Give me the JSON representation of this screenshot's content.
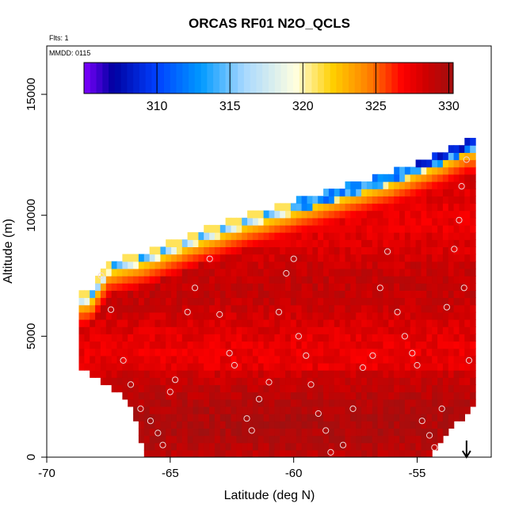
{
  "chart_data": {
    "type": "heatmap",
    "title": "ORCAS RF01 N2O_QCLS",
    "xlabel": "Latitude (deg N)",
    "ylabel": "Altitude (m)",
    "xlim": [
      -70,
      -52
    ],
    "ylim": [
      0,
      17000
    ],
    "xticks": [
      -70,
      -65,
      -60,
      -55
    ],
    "xtick_labels": [
      "-70",
      "-65",
      "-60",
      "-55"
    ],
    "yticks": [
      0,
      5000,
      10000,
      15000
    ],
    "ytick_labels": [
      "0",
      "5000",
      "10000",
      "15000"
    ],
    "flights_label": "Flts: 1",
    "date_label": "MMDD: 0115",
    "colorbar": {
      "range": [
        305,
        330.3
      ],
      "ticks": [
        310,
        315,
        320,
        325,
        330
      ],
      "tick_labels": [
        "310",
        "315",
        "320",
        "325",
        "330"
      ],
      "colors": [
        "#7f00ff",
        "#0000a0",
        "#0040ff",
        "#0099ff",
        "#a8d8ff",
        "#ffffe0",
        "#ffd000",
        "#ff8000",
        "#ff0000",
        "#cc0000",
        "#a01010"
      ],
      "stops": [
        305,
        307,
        310,
        313,
        316,
        319.5,
        322,
        324.5,
        326.8,
        328.5,
        330.3
      ]
    },
    "field": {
      "lat_bounds": [
        -68.7,
        -52.8
      ],
      "surface_alt": [
        {
          "lat": -68.7,
          "alt": 3800
        },
        {
          "lat": -68.0,
          "alt": 3200
        },
        {
          "lat": -67.2,
          "alt": 2800
        },
        {
          "lat": -66.5,
          "alt": 1800
        },
        {
          "lat": -66.0,
          "alt": 0
        },
        {
          "lat": -54.5,
          "alt": 0
        },
        {
          "lat": -53.6,
          "alt": 1200
        },
        {
          "lat": -52.8,
          "alt": 2000
        }
      ],
      "trop_top": [
        {
          "lat": -68.7,
          "alt": 6600
        },
        {
          "lat": -68.2,
          "alt": 6700
        },
        {
          "lat": -67.5,
          "alt": 7900
        },
        {
          "lat": -66.0,
          "alt": 8300
        },
        {
          "lat": -64.0,
          "alt": 9100
        },
        {
          "lat": -62.0,
          "alt": 9800
        },
        {
          "lat": -60.0,
          "alt": 10400
        },
        {
          "lat": -58.0,
          "alt": 11000
        },
        {
          "lat": -56.0,
          "alt": 11600
        },
        {
          "lat": -54.0,
          "alt": 12400
        },
        {
          "lat": -53.0,
          "alt": 12900
        }
      ],
      "background_value": 328.5
    },
    "sample_points": [
      {
        "lat": -66.9,
        "alt": 4000
      },
      {
        "lat": -67.4,
        "alt": 6100
      },
      {
        "lat": -67.8,
        "alt": 7500
      },
      {
        "lat": -66.6,
        "alt": 3000
      },
      {
        "lat": -66.2,
        "alt": 2000
      },
      {
        "lat": -65.8,
        "alt": 1500
      },
      {
        "lat": -65.5,
        "alt": 1000
      },
      {
        "lat": -65.3,
        "alt": 500
      },
      {
        "lat": -65.0,
        "alt": 2700
      },
      {
        "lat": -64.8,
        "alt": 3200
      },
      {
        "lat": -64.3,
        "alt": 6000
      },
      {
        "lat": -64.0,
        "alt": 7000
      },
      {
        "lat": -63.4,
        "alt": 8200
      },
      {
        "lat": -63.0,
        "alt": 5900
      },
      {
        "lat": -62.6,
        "alt": 4300
      },
      {
        "lat": -62.4,
        "alt": 3800
      },
      {
        "lat": -61.9,
        "alt": 1600
      },
      {
        "lat": -61.7,
        "alt": 1100
      },
      {
        "lat": -61.4,
        "alt": 2400
      },
      {
        "lat": -61.0,
        "alt": 3100
      },
      {
        "lat": -60.6,
        "alt": 6000
      },
      {
        "lat": -60.3,
        "alt": 7600
      },
      {
        "lat": -60.0,
        "alt": 8200
      },
      {
        "lat": -59.8,
        "alt": 5000
      },
      {
        "lat": -59.5,
        "alt": 4200
      },
      {
        "lat": -59.3,
        "alt": 3000
      },
      {
        "lat": -59.0,
        "alt": 1800
      },
      {
        "lat": -58.7,
        "alt": 1100
      },
      {
        "lat": -58.5,
        "alt": 200
      },
      {
        "lat": -58.0,
        "alt": 500
      },
      {
        "lat": -57.6,
        "alt": 2000
      },
      {
        "lat": -57.2,
        "alt": 3700
      },
      {
        "lat": -56.8,
        "alt": 4200
      },
      {
        "lat": -56.5,
        "alt": 7000
      },
      {
        "lat": -56.2,
        "alt": 8500
      },
      {
        "lat": -55.8,
        "alt": 6000
      },
      {
        "lat": -55.5,
        "alt": 5000
      },
      {
        "lat": -55.2,
        "alt": 4300
      },
      {
        "lat": -55.0,
        "alt": 3800
      },
      {
        "lat": -54.8,
        "alt": 1500
      },
      {
        "lat": -54.5,
        "alt": 900
      },
      {
        "lat": -54.3,
        "alt": 400
      },
      {
        "lat": -54.0,
        "alt": 2000
      },
      {
        "lat": -53.8,
        "alt": 6200
      },
      {
        "lat": -53.5,
        "alt": 8600
      },
      {
        "lat": -53.3,
        "alt": 9800
      },
      {
        "lat": -53.1,
        "alt": 7000
      },
      {
        "lat": -52.9,
        "alt": 4000
      },
      {
        "lat": -53.2,
        "alt": 11200
      },
      {
        "lat": -53.0,
        "alt": 12300
      }
    ],
    "arrow": {
      "lat": -53.0,
      "direction": "down"
    }
  }
}
